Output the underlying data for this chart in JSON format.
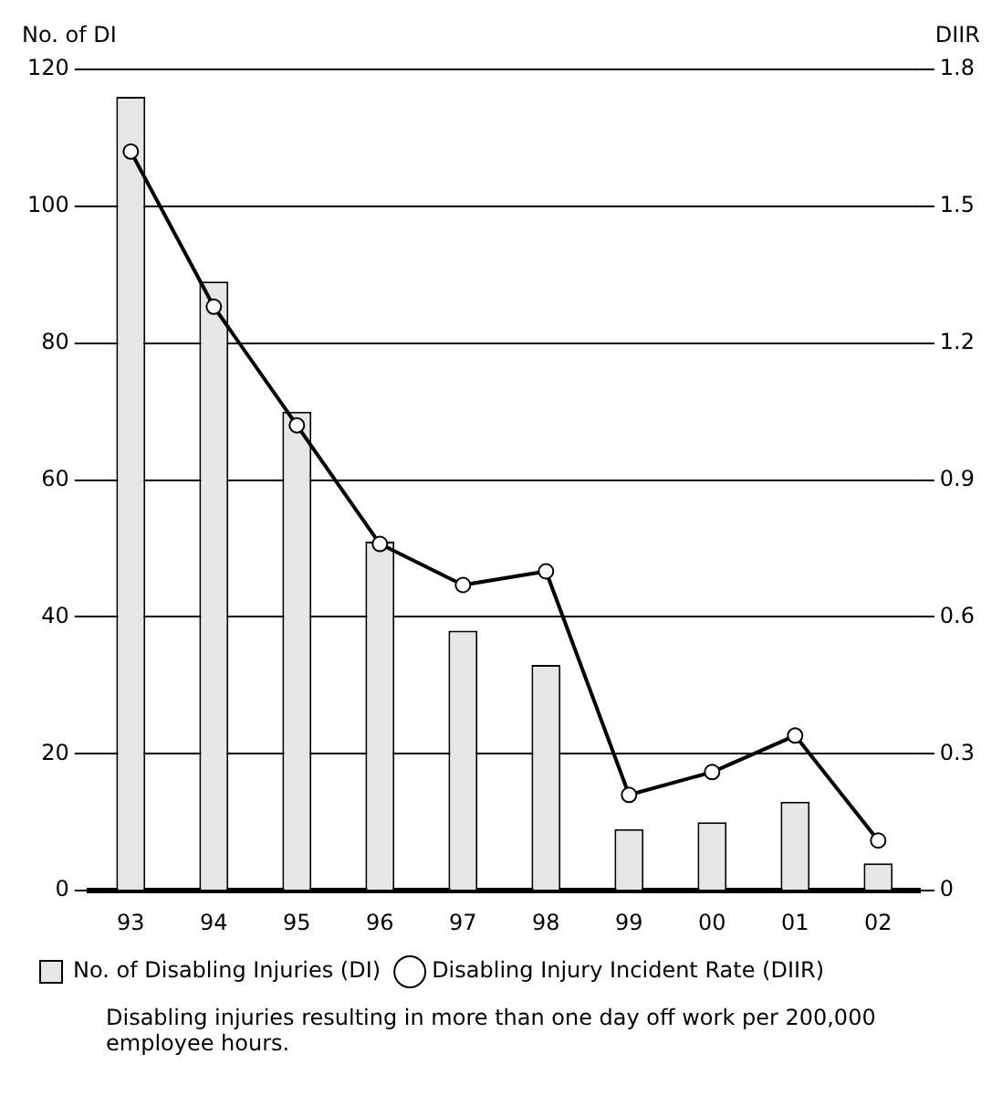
{
  "chart_data": {
    "type": "bar",
    "categories": [
      "93",
      "94",
      "95",
      "96",
      "97",
      "98",
      "99",
      "00",
      "01",
      "02"
    ],
    "series": [
      {
        "name": "No. of Disabling Injuries (DI)",
        "color": "#e6e6e6",
        "values": [
          116,
          89,
          70,
          51,
          38,
          33,
          9,
          10,
          13,
          4
        ]
      },
      {
        "name": "Disabling Injury Incident Rate (DIIR)",
        "type": "line",
        "axis": "y2",
        "color": "#000000",
        "values": [
          1.62,
          1.28,
          1.02,
          0.76,
          0.67,
          0.7,
          0.21,
          0.26,
          0.34,
          0.11
        ]
      }
    ],
    "ylabel": "No. of DI",
    "y2label": "DIIR",
    "ylim": [
      0,
      120
    ],
    "yticks": [
      0,
      20,
      40,
      60,
      80,
      100,
      120
    ],
    "y2lim": [
      0,
      1.8
    ],
    "y2ticks": [
      0,
      0.3,
      0.6,
      0.9,
      1.2,
      1.5,
      1.8
    ],
    "grid": "y",
    "legend": "bottom",
    "marker": "circle",
    "line_style": "solid",
    "annotations": [
      "Disabling injuries resulting in more than one day off work per 200,000 employee hours."
    ]
  }
}
